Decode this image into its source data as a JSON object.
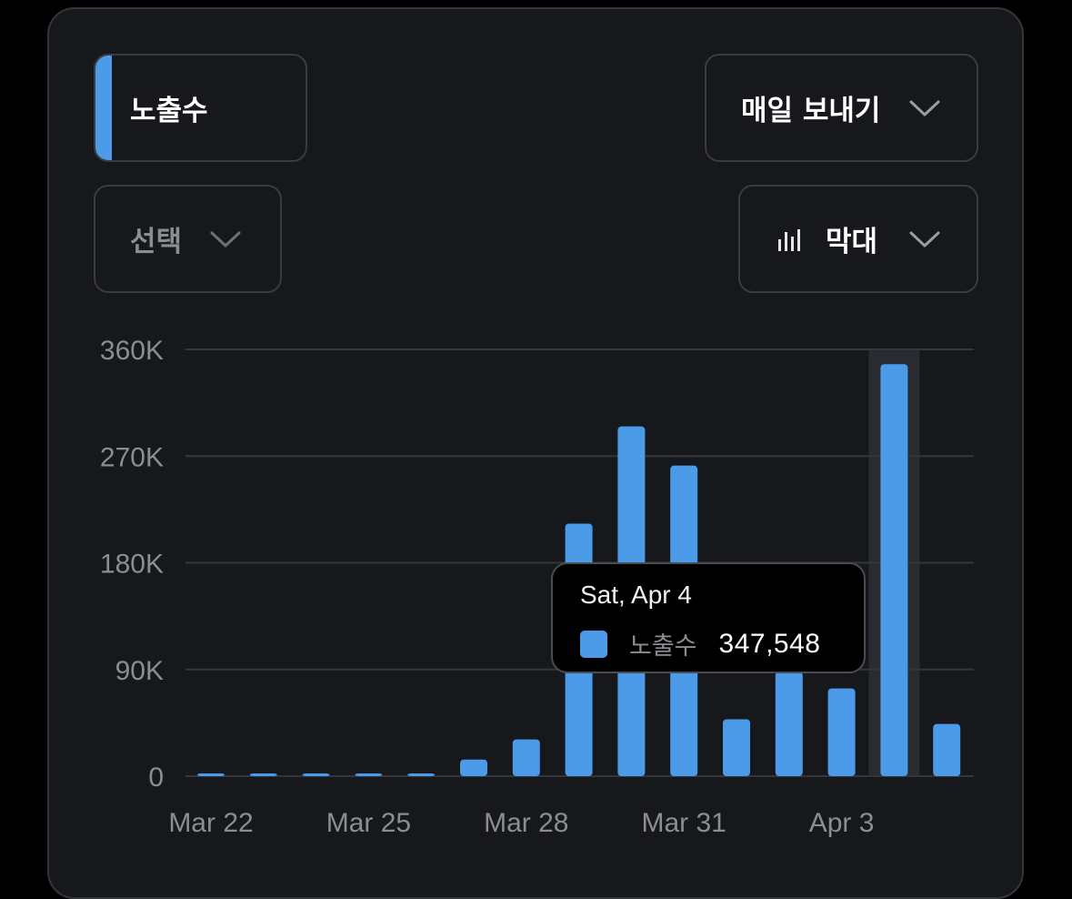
{
  "controls": {
    "metric": {
      "label": "노출수",
      "accent_color": "#4b9be8"
    },
    "export": {
      "label": "매일 보내기"
    },
    "select": {
      "label": "선택"
    },
    "chart_type": {
      "label": "막대",
      "icon": "bar-chart-icon"
    }
  },
  "tooltip": {
    "date": "Sat, Apr 4",
    "series": "노출수",
    "value": "347,548"
  },
  "colors": {
    "bar": "#4b9be8",
    "highlight": "#2a2b30",
    "grid": "#34363c",
    "axis_text": "#8b8d93"
  },
  "chart_data": {
    "type": "bar",
    "categories": [
      "Mar 22",
      "Mar 23",
      "Mar 24",
      "Mar 25",
      "Mar 26",
      "Mar 27",
      "Mar 28",
      "Mar 29",
      "Mar 30",
      "Mar 31",
      "Apr 1",
      "Apr 2",
      "Apr 3",
      "Apr 4",
      "Apr 5"
    ],
    "x_tick_labels": [
      "Mar 22",
      "Mar 25",
      "Mar 28",
      "Mar 31",
      "Apr 3"
    ],
    "values": [
      1500,
      1500,
      1500,
      1500,
      1500,
      14000,
      31000,
      213000,
      295000,
      262000,
      48000,
      88000,
      74000,
      347548,
      44000
    ],
    "y_tick_labels": [
      "0",
      "90K",
      "180K",
      "270K",
      "360K"
    ],
    "ylim": [
      0,
      360000
    ],
    "highlight_category": "Apr 4",
    "grid": true,
    "legend": "none"
  }
}
